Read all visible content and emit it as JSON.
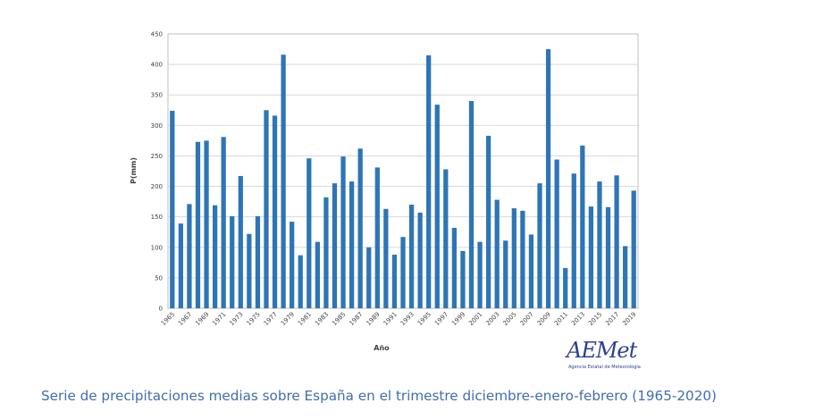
{
  "chart_data": {
    "type": "bar",
    "title": "",
    "xlabel": "Año",
    "ylabel": "P(mm)",
    "ylim": [
      0,
      450
    ],
    "yticks": [
      0,
      50,
      100,
      150,
      200,
      250,
      300,
      350,
      400,
      450
    ],
    "grid": true,
    "bar_color": "#2e75b6",
    "categories": [
      "1965",
      "1966",
      "1967",
      "1968",
      "1969",
      "1970",
      "1971",
      "1972",
      "1973",
      "1974",
      "1975",
      "1976",
      "1977",
      "1978",
      "1979",
      "1980",
      "1981",
      "1982",
      "1983",
      "1984",
      "1985",
      "1986",
      "1987",
      "1988",
      "1989",
      "1990",
      "1991",
      "1992",
      "1993",
      "1994",
      "1995",
      "1996",
      "1997",
      "1998",
      "1999",
      "2000",
      "2001",
      "2002",
      "2003",
      "2004",
      "2005",
      "2006",
      "2007",
      "2008",
      "2009",
      "2010",
      "2011",
      "2012",
      "2013",
      "2014",
      "2015",
      "2016",
      "2017",
      "2018",
      "2019"
    ],
    "tick_labels": [
      "1965",
      "1967",
      "1969",
      "1971",
      "1973",
      "1975",
      "1977",
      "1979",
      "1981",
      "1983",
      "1985",
      "1987",
      "1989",
      "1991",
      "1993",
      "1995",
      "1997",
      "1999",
      "2001",
      "2003",
      "2005",
      "2007",
      "2009",
      "2011",
      "2013",
      "2015",
      "2017",
      "2019"
    ],
    "values": [
      324,
      139,
      171,
      273,
      275,
      169,
      281,
      151,
      217,
      122,
      151,
      325,
      316,
      416,
      142,
      87,
      246,
      109,
      182,
      205,
      249,
      208,
      262,
      100,
      231,
      163,
      88,
      117,
      170,
      157,
      415,
      334,
      228,
      132,
      94,
      340,
      109,
      283,
      178,
      111,
      164,
      160,
      121,
      205,
      425,
      244,
      66,
      221,
      267,
      167,
      208,
      166,
      218,
      102,
      193
    ]
  },
  "logo": {
    "wordmark": "AEMet",
    "subtitle": "Agencia Estatal de Meteorología"
  },
  "caption": "Serie de precipitaciones medias sobre España en el trimestre diciembre-enero-febrero (1965-2020)"
}
